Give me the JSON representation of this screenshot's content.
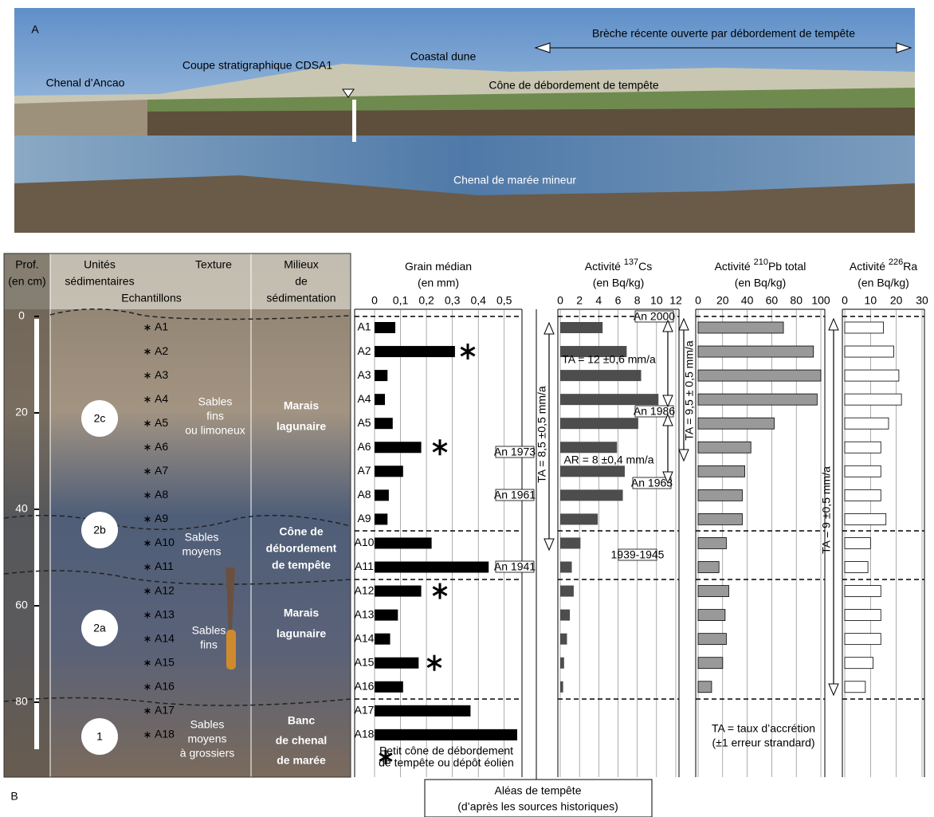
{
  "panel_a": {
    "label": "A",
    "labels": [
      "Chenal d’Ancao",
      "Coupe stratigraphique CDSA1",
      "Coastal dune",
      "Brèche récente ouverte par débordement de tempête",
      "Cône de débordement de tempête",
      "Chenal de marée mineur"
    ]
  },
  "panel_b": {
    "label": "B",
    "headers": {
      "depth": [
        "Prof.",
        "(en cm)"
      ],
      "units": [
        "Unités",
        "sédimentaires"
      ],
      "texture": "Texture",
      "samples": "Echantillons",
      "environments": [
        "Milieux",
        "de",
        "sédimentation"
      ]
    },
    "depth_ticks": [
      0,
      20,
      40,
      60,
      80
    ],
    "units": [
      "2c",
      "2b",
      "2a",
      "1"
    ],
    "textures": [
      [
        "Sables",
        "fins",
        "ou limoneux"
      ],
      [
        "Sables",
        "moyens"
      ],
      [
        "Sables",
        "fins"
      ],
      [
        "Sables",
        "moyens",
        "à grossiers"
      ]
    ],
    "environments": [
      [
        "Marais",
        "lagunaire"
      ],
      [
        "Cône de",
        "débordement",
        "de tempête"
      ],
      [
        "Marais",
        "lagunaire"
      ],
      [
        "Banc",
        "de chenal",
        "de marée"
      ]
    ],
    "grain_legend": [
      "Petit cône de débordement",
      "de tempête ou dépôt éolien"
    ],
    "dates": [
      "An 1973",
      "An 1961",
      "An 1941",
      "An 2000",
      "An 1986",
      "An 1963",
      "1939-1945"
    ],
    "rates": [
      "TA = 8,5 ±0,5 mm/a",
      "TA = 12 ±0,6 mm/a",
      "AR = 8 ±0,4 mm/a",
      "TA = 9,5 ± 0,5 mm/a",
      "TA = 9 ±0,5 mm/a"
    ],
    "rate_legend": [
      "TA = taux d’accrétion",
      "(±1 erreur strandard)"
    ],
    "storm_box": [
      "Aléas de tempête",
      "(d’après les sources historiques)"
    ]
  },
  "chart_data": [
    {
      "type": "bar",
      "orientation": "horizontal",
      "title": [
        "Grain médian"
      ],
      "subtitle": "(en mm)",
      "color": "#000000",
      "categories": [
        "A1",
        "A2",
        "A3",
        "A4",
        "A5",
        "A6",
        "A7",
        "A8",
        "A9",
        "A10",
        "A11",
        "A12",
        "A13",
        "A14",
        "A15",
        "A16",
        "A17",
        "A18"
      ],
      "values": [
        0.08,
        0.31,
        0.05,
        0.04,
        0.07,
        0.18,
        0.11,
        0.055,
        0.05,
        0.22,
        0.44,
        0.18,
        0.09,
        0.06,
        0.17,
        0.11,
        0.37,
        0.55
      ],
      "xlim": [
        0,
        0.55
      ],
      "xticks": [
        0,
        {
          "value": 0.1,
          "label": "0,1"
        },
        {
          "value": 0.2,
          "label": "0,2"
        },
        {
          "value": 0.3,
          "label": "0,3"
        },
        {
          "value": 0.4,
          "label": "0,4"
        },
        {
          "value": 0.5,
          "label": "0,5"
        }
      ]
    },
    {
      "type": "bar",
      "orientation": "horizontal",
      "title": [
        "Activité ",
        "137",
        "Cs"
      ],
      "subtitle": "(en Bq/kg)",
      "color": "#4d4d4d",
      "values": [
        4.4,
        6.9,
        8.4,
        10.2,
        8.1,
        5.9,
        6.7,
        6.5,
        3.9,
        2.1,
        1.2,
        1.4,
        1.0,
        0.7,
        0.4,
        0.3,
        null,
        null
      ],
      "xlim": [
        0,
        12
      ],
      "xticks": [
        0,
        2,
        4,
        6,
        8,
        10,
        12
      ]
    },
    {
      "type": "bar",
      "orientation": "horizontal",
      "title": [
        "Activité ",
        "210",
        "Pb total"
      ],
      "subtitle": "(en Bq/kg)",
      "color": "#999999",
      "values": [
        69.5,
        94,
        100,
        97,
        62,
        43,
        38,
        36,
        36,
        23,
        17,
        25,
        22,
        23,
        20,
        11,
        null,
        null
      ],
      "xlim": [
        0,
        100
      ],
      "xticks": [
        0,
        20,
        40,
        60,
        80,
        100
      ]
    },
    {
      "type": "bar",
      "orientation": "horizontal",
      "title": [
        "Activité ",
        "226",
        "Ra"
      ],
      "subtitle": "(en Bq/kg)",
      "color": "#ffffff",
      "values": [
        15,
        19,
        21,
        22,
        17,
        14,
        14,
        14,
        16,
        10,
        9,
        14,
        14,
        14,
        11,
        8,
        null,
        null
      ],
      "xlim": [
        0,
        30
      ],
      "xticks": [
        0,
        10,
        20,
        30
      ]
    }
  ]
}
